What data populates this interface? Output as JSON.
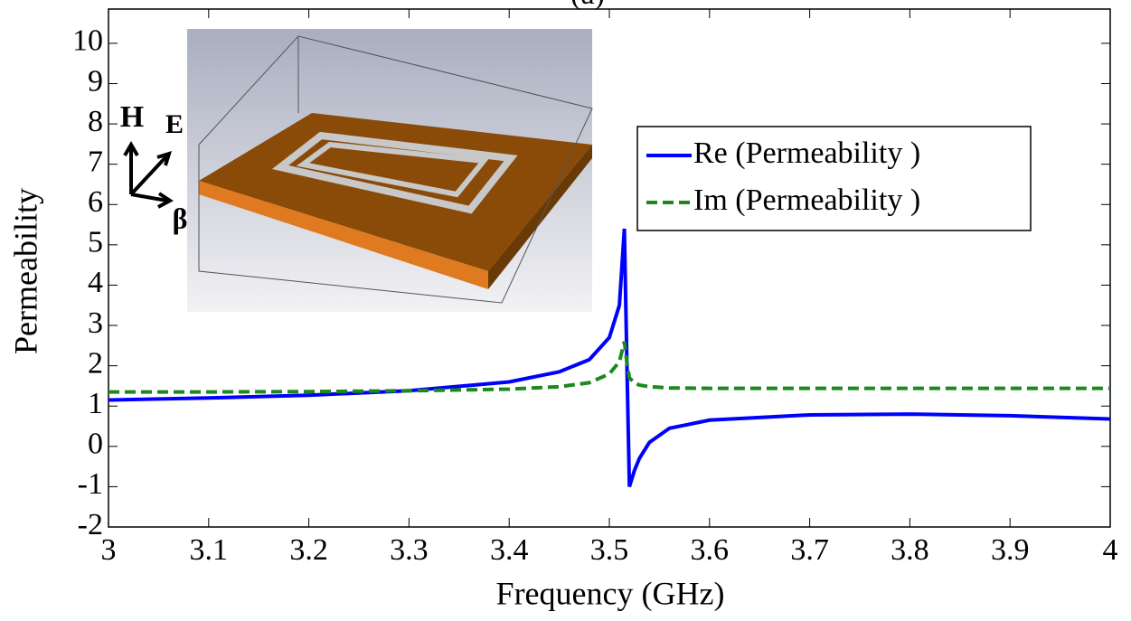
{
  "chart_data": {
    "type": "line",
    "title": "(a)",
    "x_label": "Frequency (GHz)",
    "y_label": "Permeability",
    "annotations": [
      "H",
      "E",
      "β"
    ],
    "x": [
      3.0,
      3.1,
      3.2,
      3.3,
      3.4,
      3.45,
      3.48,
      3.5,
      3.51,
      3.515,
      3.518,
      3.52,
      3.525,
      3.53,
      3.54,
      3.56,
      3.6,
      3.7,
      3.8,
      3.9,
      4.0
    ],
    "series": [
      {
        "name": "Re (Permeability )",
        "color": "#0000ff",
        "dashed": false,
        "values": [
          1.15,
          1.2,
          1.27,
          1.38,
          1.6,
          1.85,
          2.15,
          2.7,
          3.5,
          5.4,
          1.5,
          -1.0,
          -0.6,
          -0.3,
          0.1,
          0.45,
          0.65,
          0.78,
          0.8,
          0.76,
          0.68
        ]
      },
      {
        "name": "Im (Permeability )",
        "color": "#1a8a1a",
        "dashed": true,
        "values": [
          1.35,
          1.35,
          1.36,
          1.38,
          1.42,
          1.48,
          1.58,
          1.8,
          2.1,
          2.6,
          2.0,
          1.7,
          1.58,
          1.52,
          1.48,
          1.45,
          1.44,
          1.44,
          1.44,
          1.44,
          1.44
        ]
      }
    ],
    "xlim": [
      3,
      4
    ],
    "xticks": [
      3,
      3.1,
      3.2,
      3.3,
      3.4,
      3.5,
      3.6,
      3.7,
      3.8,
      3.9,
      4
    ],
    "ylim": [
      -2,
      10.85
    ],
    "yticks": [
      -2,
      -1,
      0,
      1,
      2,
      3,
      4,
      5,
      6,
      7,
      8,
      9,
      10
    ],
    "grid": false,
    "legend": "upper-right"
  }
}
